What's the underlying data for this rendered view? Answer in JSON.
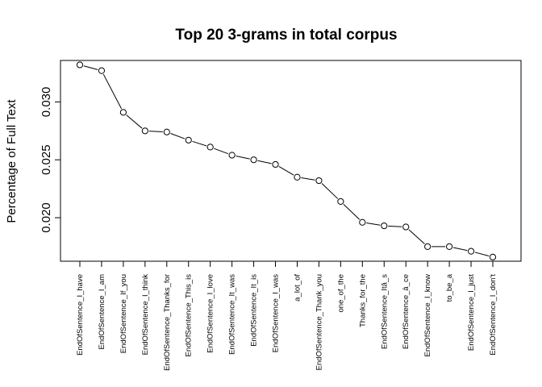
{
  "chart_data": {
    "type": "line",
    "title": "Top 20 3-grams in total corpus",
    "xlabel": "",
    "ylabel": "Percentage of Full Text",
    "categories": [
      "EndOfSentence_I_have",
      "EndOfSentence_I_am",
      "EndOfSentence_If_you",
      "EndOfSentence_I_think",
      "EndOfSentence_Thanks_for",
      "EndOfSentence_This_is",
      "EndOfSentence_I_love",
      "EndOfSentence_It_was",
      "EndOfSentence_It_is",
      "EndOfSentence_I_was",
      "a_lot_of",
      "EndOfSentence_Thank_you",
      "one_of_the",
      "Thanks_for_the",
      "EndOfSentence_Itâ_s",
      "EndOfSentence_â_ce",
      "EndOfSentence_I_know",
      "to_be_a",
      "EndOfSentence_I_just",
      "EndOfSentence_I_don't"
    ],
    "values": [
      0.0332,
      0.0327,
      0.0291,
      0.0275,
      0.0274,
      0.0267,
      0.0261,
      0.0254,
      0.025,
      0.0246,
      0.0235,
      0.0232,
      0.0214,
      0.0196,
      0.0193,
      0.0192,
      0.0175,
      0.0175,
      0.0171,
      0.0166
    ],
    "yticks": [
      "0.020",
      "0.025",
      "0.030"
    ],
    "ylim": [
      0.01624,
      0.03358
    ],
    "grid": false,
    "marker": "open-circle",
    "line_color": "#000000"
  }
}
